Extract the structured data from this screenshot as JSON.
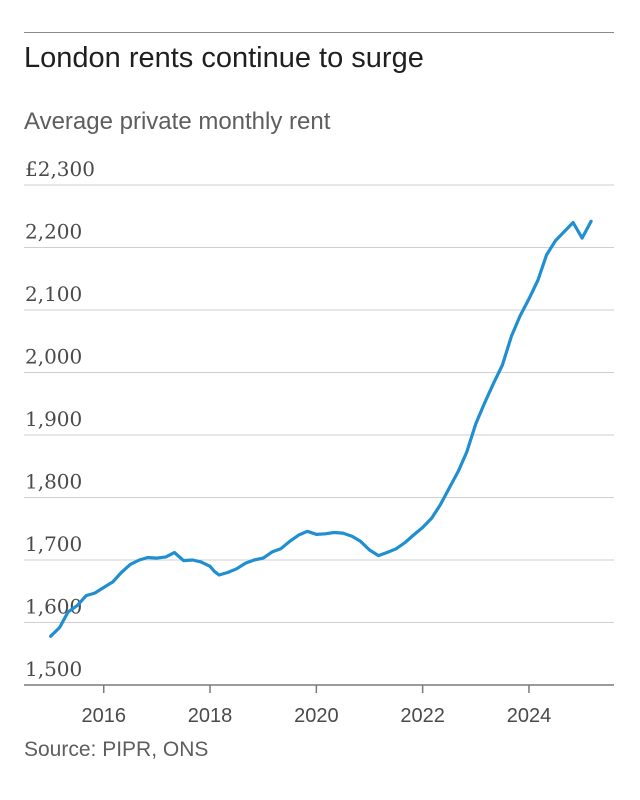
{
  "header": {
    "title": "London rents continue to surge",
    "subtitle": "Average private monthly rent"
  },
  "footer": {
    "source": "Source: PIPR, ONS"
  },
  "colors": {
    "line": "#1f8fd1",
    "grid": "#cfcfcf",
    "axis": "#7a7a7a"
  },
  "chart_data": {
    "type": "line",
    "title": "London rents continue to surge",
    "subtitle": "Average private monthly rent",
    "xlabel": "",
    "ylabel": "",
    "xlim": [
      2014.5,
      2025.6
    ],
    "ylim": [
      1500,
      2300
    ],
    "y_ticks": [
      {
        "value": 1500,
        "label": "1,500"
      },
      {
        "value": 1600,
        "label": "1,600"
      },
      {
        "value": 1700,
        "label": "1,700"
      },
      {
        "value": 1800,
        "label": "1,800"
      },
      {
        "value": 1900,
        "label": "1,900"
      },
      {
        "value": 2000,
        "label": "2,000"
      },
      {
        "value": 2100,
        "label": "2,100"
      },
      {
        "value": 2200,
        "label": "2,200"
      },
      {
        "value": 2300,
        "label": "£2,300"
      }
    ],
    "x_ticks": [
      {
        "value": 2016,
        "label": "2016"
      },
      {
        "value": 2018,
        "label": "2018"
      },
      {
        "value": 2020,
        "label": "2020"
      },
      {
        "value": 2022,
        "label": "2022"
      },
      {
        "value": 2024,
        "label": "2024"
      }
    ],
    "grid": true,
    "series": [
      {
        "x": [
          2015.0,
          2015.17,
          2015.33,
          2015.5,
          2015.67,
          2015.83,
          2016.0,
          2016.17,
          2016.33,
          2016.5,
          2016.67,
          2016.83,
          2017.0,
          2017.17,
          2017.33,
          2017.5,
          2017.67,
          2017.83,
          2018.0,
          2018.08,
          2018.17,
          2018.33,
          2018.5,
          2018.67,
          2018.83,
          2019.0,
          2019.17,
          2019.33,
          2019.5,
          2019.67,
          2019.83,
          2020.0,
          2020.17,
          2020.33,
          2020.5,
          2020.67,
          2020.83,
          2021.0,
          2021.17,
          2021.33,
          2021.5,
          2021.67,
          2021.83,
          2022.0,
          2022.17,
          2022.33,
          2022.5,
          2022.67,
          2022.83,
          2023.0,
          2023.17,
          2023.33,
          2023.5,
          2023.67,
          2023.83,
          2024.0,
          2024.17,
          2024.33,
          2024.5,
          2024.67,
          2024.83,
          2025.0,
          2025.17
        ],
        "values": [
          1578,
          1592,
          1617,
          1627,
          1643,
          1647,
          1656,
          1665,
          1680,
          1693,
          1700,
          1704,
          1703,
          1705,
          1712,
          1699,
          1700,
          1697,
          1690,
          1682,
          1676,
          1680,
          1686,
          1695,
          1700,
          1703,
          1713,
          1718,
          1730,
          1740,
          1746,
          1741,
          1742,
          1744,
          1743,
          1738,
          1730,
          1716,
          1707,
          1712,
          1718,
          1728,
          1740,
          1752,
          1767,
          1788,
          1815,
          1842,
          1873,
          1918,
          1952,
          1982,
          2012,
          2058,
          2090,
          2118,
          2148,
          2188,
          2211,
          2226,
          2240,
          2215,
          2242
        ]
      }
    ]
  }
}
